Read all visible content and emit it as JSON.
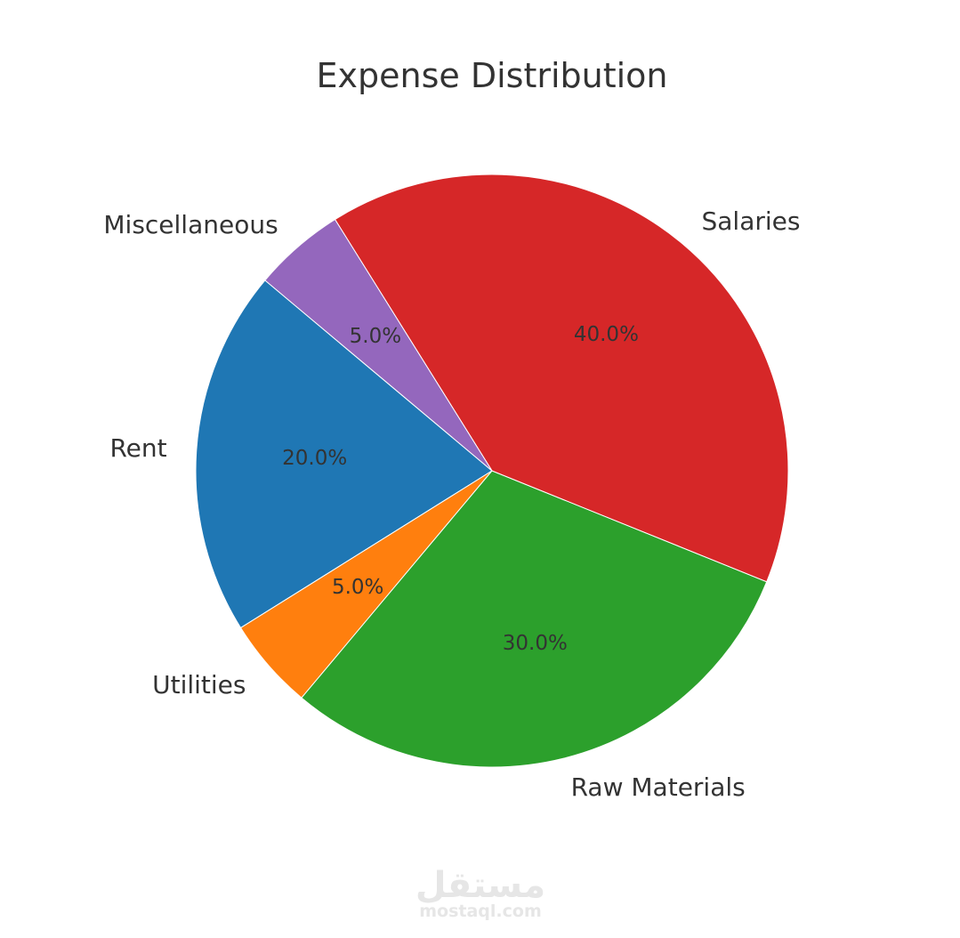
{
  "chart_data": {
    "type": "pie",
    "title": "Expense Distribution",
    "start_angle_deg": 140,
    "direction": "counterclockwise",
    "slices": [
      {
        "label": "Rent",
        "value": 20.0,
        "pct_label": "20.0%",
        "color": "#1f77b4"
      },
      {
        "label": "Utilities",
        "value": 5.0,
        "pct_label": "5.0%",
        "color": "#ff7f0e"
      },
      {
        "label": "Raw Materials",
        "value": 30.0,
        "pct_label": "30.0%",
        "color": "#2ca02c"
      },
      {
        "label": "Salaries",
        "value": 40.0,
        "pct_label": "40.0%",
        "color": "#d62728"
      },
      {
        "label": "Miscellaneous",
        "value": 5.0,
        "pct_label": "5.0%",
        "color": "#9467bd"
      }
    ]
  },
  "watermark": {
    "arabic": "مستقل",
    "latin": "mostaql.com"
  }
}
